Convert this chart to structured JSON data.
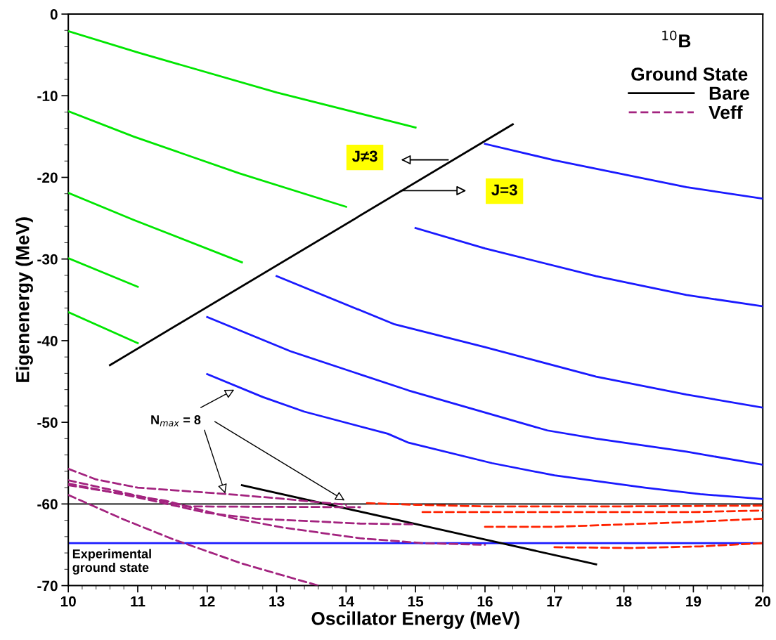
{
  "chart_data": {
    "type": "line",
    "title": "$^{10}$B",
    "legend_title": "Ground State",
    "xlabel": "Oscillator Energy (MeV)",
    "ylabel": "Eigenenergy (MeV)",
    "xlim": [
      10,
      20
    ],
    "ylim": [
      -70,
      0
    ],
    "xticks": [
      10,
      11,
      12,
      13,
      14,
      15,
      16,
      17,
      18,
      19,
      20
    ],
    "yticks": [
      -70,
      -60,
      -50,
      -40,
      -30,
      -20,
      -10,
      0
    ],
    "grid": false,
    "legend": "top right",
    "series": [
      {
        "color": "#00e600",
        "line_style": "solid",
        "x": [
          10,
          11,
          13,
          15
        ],
        "values": [
          -2.1,
          -4.7,
          -9.6,
          -13.9
        ]
      },
      {
        "color": "#00e600",
        "line_style": "solid",
        "x": [
          10,
          10.94,
          12.46,
          14.0
        ],
        "values": [
          -11.9,
          -15.0,
          -19.5,
          -23.6
        ]
      },
      {
        "color": "#00e600",
        "line_style": "solid",
        "x": [
          10,
          10.94,
          12.5
        ],
        "values": [
          -21.9,
          -25.2,
          -30.4
        ]
      },
      {
        "color": "#00e600",
        "line_style": "solid",
        "x": [
          10,
          11.0
        ],
        "values": [
          -29.9,
          -33.4
        ]
      },
      {
        "color": "#00e600",
        "line_style": "solid",
        "x": [
          10,
          11.0
        ],
        "values": [
          -36.5,
          -40.3
        ]
      },
      {
        "color": "#1a1aff",
        "line_style": "solid",
        "x": [
          16.0,
          17.0,
          18.9,
          20
        ],
        "values": [
          -15.9,
          -17.9,
          -21.2,
          -22.6
        ]
      },
      {
        "color": "#1a1aff",
        "line_style": "solid",
        "x": [
          15.0,
          16.0,
          17.6,
          18.9,
          20
        ],
        "values": [
          -26.2,
          -28.7,
          -32.1,
          -34.4,
          -35.8
        ]
      },
      {
        "color": "#1a1aff",
        "line_style": "solid",
        "x": [
          13.0,
          14.7,
          16.0,
          17.6,
          18.9,
          20
        ],
        "values": [
          -32.1,
          -38.0,
          -40.8,
          -44.4,
          -46.6,
          -48.2
        ]
      },
      {
        "color": "#1a1aff",
        "line_style": "solid",
        "x": [
          12.0,
          13.2,
          14.9,
          16.9,
          17.6,
          18.9,
          20
        ],
        "values": [
          -37.1,
          -41.3,
          -46.1,
          -51.0,
          -52.0,
          -53.6,
          -55.2
        ]
      },
      {
        "color": "#1a1aff",
        "line_style": "solid",
        "x": [
          12.0,
          12.8,
          13.4,
          14.6,
          14.9,
          16.1,
          17.0,
          18.3,
          19.1,
          20
        ],
        "values": [
          -44.1,
          -46.9,
          -48.7,
          -51.4,
          -52.5,
          -55.0,
          -56.5,
          -58.0,
          -58.8,
          -59.4
        ]
      },
      {
        "color": "#000000",
        "line_style": "solid",
        "x": [
          10.6,
          16.4
        ],
        "values": [
          -43.0,
          -13.5
        ]
      },
      {
        "name": "Bare",
        "color": "#000000",
        "line_style": "solid",
        "x": [
          12.5,
          17.6
        ],
        "values": [
          -57.7,
          -67.4
        ]
      },
      {
        "name": "Veff",
        "color": "#a3237f",
        "line_style": "dashed",
        "x": [
          10,
          10.4,
          11,
          12.3,
          13.0,
          14.0
        ],
        "values": [
          -55.7,
          -57.0,
          -58.0,
          -58.8,
          -59.3,
          -60.1
        ]
      },
      {
        "color": "#a3237f",
        "line_style": "dashed",
        "x": [
          10,
          11.0,
          11.7,
          14.2
        ],
        "values": [
          -57.1,
          -59.0,
          -60.3,
          -60.4
        ]
      },
      {
        "color": "#a3237f",
        "line_style": "dashed",
        "x": [
          10,
          11.0,
          12.0,
          12.7,
          14.2,
          15.0
        ],
        "values": [
          -57.5,
          -59.2,
          -61.1,
          -61.8,
          -62.4,
          -62.5
        ]
      },
      {
        "color": "#a3237f",
        "line_style": "dashed",
        "x": [
          10,
          11.4,
          12.4,
          13.1,
          14.2,
          15.1,
          16.0
        ],
        "values": [
          -57.7,
          -59.6,
          -61.8,
          -62.9,
          -64.2,
          -64.8,
          -65.0
        ]
      },
      {
        "color": "#a3237f",
        "line_style": "dashed",
        "x": [
          10.0,
          10.8,
          11.5,
          12.5,
          13.6
        ],
        "values": [
          -58.9,
          -61.9,
          -64.3,
          -67.3,
          -70.0
        ]
      },
      {
        "color": "#ff2200",
        "line_style": "dashed",
        "x": [
          14.3,
          15,
          16,
          18,
          20
        ],
        "values": [
          -59.9,
          -60.1,
          -60.3,
          -60.3,
          -60.2
        ]
      },
      {
        "color": "#ff2200",
        "line_style": "dashed",
        "x": [
          15.1,
          17,
          19,
          20
        ],
        "values": [
          -61.0,
          -61.0,
          -61.0,
          -60.8
        ]
      },
      {
        "color": "#ff2200",
        "line_style": "dashed",
        "x": [
          16.0,
          17.0,
          18.0,
          19.0,
          20
        ],
        "values": [
          -62.8,
          -62.8,
          -62.5,
          -62.2,
          -61.8
        ]
      },
      {
        "color": "#ff2200",
        "line_style": "dashed",
        "x": [
          17.0,
          18.1,
          19.1,
          20
        ],
        "values": [
          -65.3,
          -65.4,
          -65.2,
          -64.8
        ]
      }
    ],
    "ref_lines": [
      {
        "axis": "y",
        "value": -60,
        "color": "#000000"
      },
      {
        "axis": "y",
        "value": -64.8,
        "color": "#1a1aff",
        "label": "Experimental\nground state"
      }
    ],
    "annotations": [
      {
        "text": "N$_{max}$ = 8",
        "x": 12.39,
        "y": -46.0
      },
      "J≠3",
      "J=3"
    ]
  }
}
